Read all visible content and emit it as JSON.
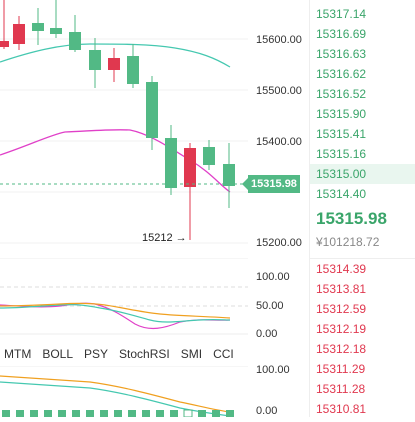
{
  "main_chart": {
    "y_axis_labels": [
      "15600.00",
      "15500.00",
      "15400.00",
      "15200.00"
    ],
    "current_price_badge": "15315.98",
    "low_annotation": "15212 →",
    "colors": {
      "up": "#52b985",
      "down": "#e0384f",
      "ma_teal": "#45c8b0",
      "ma_magenta": "#e040c8"
    }
  },
  "oscillator": {
    "y_axis_labels": [
      "100.00",
      "50.00",
      "0.00"
    ]
  },
  "indicator_tabs": [
    "MTM",
    "BOLL",
    "PSY",
    "StochRSI",
    "SMI",
    "CCI"
  ],
  "macd": {
    "y_axis_labels": [
      "100.00",
      "0.00"
    ]
  },
  "depth": {
    "asks": [
      "15317.14",
      "15316.69",
      "15316.63",
      "15316.62",
      "15316.52",
      "15315.90",
      "15315.41",
      "15315.16",
      "15315.00",
      "15314.40"
    ],
    "last_price": "15315.98",
    "last_price_sub": "¥101218.72",
    "bids": [
      "15314.39",
      "15313.81",
      "15312.59",
      "15312.19",
      "15312.18",
      "15311.29",
      "15311.28",
      "15310.81"
    ]
  }
}
